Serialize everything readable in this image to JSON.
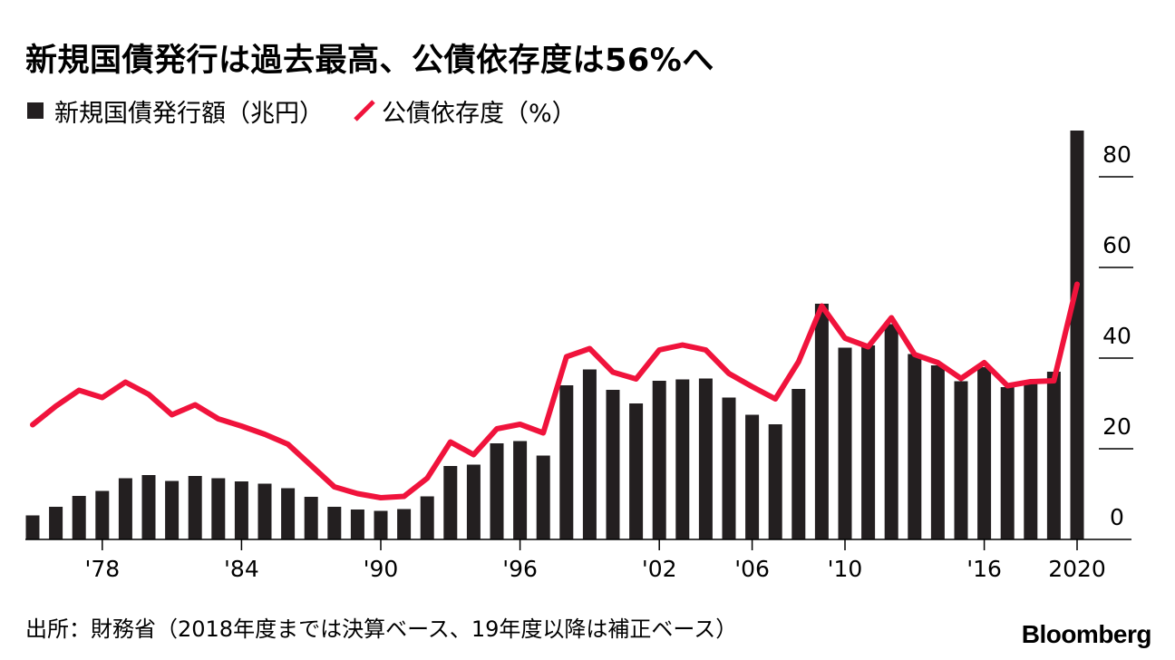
{
  "title": "新規国債発行は過去最高、公債依存度は56%へ",
  "legend": {
    "bars_label": "新規国債発行額（兆円）",
    "line_label": "公債依存度（%）"
  },
  "source": "出所：財務省（2018年度までは決算ベース、19年度以降は補正ベース）",
  "logo": "Bloomberg",
  "colors": {
    "bar": "#231f20",
    "line": "#f0133c",
    "axis": "#000000"
  },
  "chart_data": {
    "type": "bar",
    "years": [
      1975,
      1976,
      1977,
      1978,
      1979,
      1980,
      1981,
      1982,
      1983,
      1984,
      1985,
      1986,
      1987,
      1988,
      1989,
      1990,
      1991,
      1992,
      1993,
      1994,
      1995,
      1996,
      1997,
      1998,
      1999,
      2000,
      2001,
      2002,
      2003,
      2004,
      2005,
      2006,
      2007,
      2008,
      2009,
      2010,
      2011,
      2012,
      2013,
      2014,
      2015,
      2016,
      2017,
      2018,
      2019,
      2020
    ],
    "x_tick_labels": [
      {
        "year": 1978,
        "label": "'78"
      },
      {
        "year": 1984,
        "label": "'84"
      },
      {
        "year": 1990,
        "label": "'90"
      },
      {
        "year": 1996,
        "label": "'96"
      },
      {
        "year": 2002,
        "label": "'02"
      },
      {
        "year": 2006,
        "label": "'06"
      },
      {
        "year": 2010,
        "label": "'10"
      },
      {
        "year": 2016,
        "label": "'16"
      },
      {
        "year": 2020,
        "label": "2020"
      }
    ],
    "y_ticks": [
      0,
      20,
      40,
      60,
      80
    ],
    "ylim": [
      0,
      90
    ],
    "axis_side": "right",
    "series": [
      {
        "name": "新規国債発行額（兆円）",
        "kind": "bar",
        "values": [
          5.3,
          7.2,
          9.6,
          10.7,
          13.5,
          14.2,
          12.9,
          14.0,
          13.5,
          12.8,
          12.3,
          11.3,
          9.4,
          7.2,
          6.6,
          6.3,
          6.7,
          9.5,
          16.2,
          16.5,
          21.2,
          21.7,
          18.5,
          34.0,
          37.5,
          33.0,
          30.0,
          35.0,
          35.3,
          35.5,
          31.3,
          27.5,
          25.4,
          33.2,
          52.0,
          42.3,
          42.8,
          47.5,
          40.9,
          38.4,
          34.9,
          38.0,
          33.6,
          34.4,
          37.0,
          90.2
        ]
      },
      {
        "name": "公債依存度（%）",
        "kind": "line",
        "values": [
          25.3,
          29.4,
          32.9,
          31.3,
          34.7,
          32.0,
          27.5,
          29.7,
          26.6,
          25.0,
          23.2,
          21.0,
          16.3,
          11.6,
          10.1,
          9.2,
          9.5,
          13.5,
          21.5,
          18.7,
          24.4,
          25.4,
          23.5,
          40.3,
          42.1,
          36.9,
          35.4,
          41.8,
          42.9,
          41.8,
          36.6,
          33.7,
          31.0,
          39.2,
          51.5,
          44.4,
          42.5,
          48.9,
          40.8,
          39.0,
          35.5,
          39.0,
          33.9,
          34.8,
          35.0,
          56.3
        ]
      }
    ]
  }
}
